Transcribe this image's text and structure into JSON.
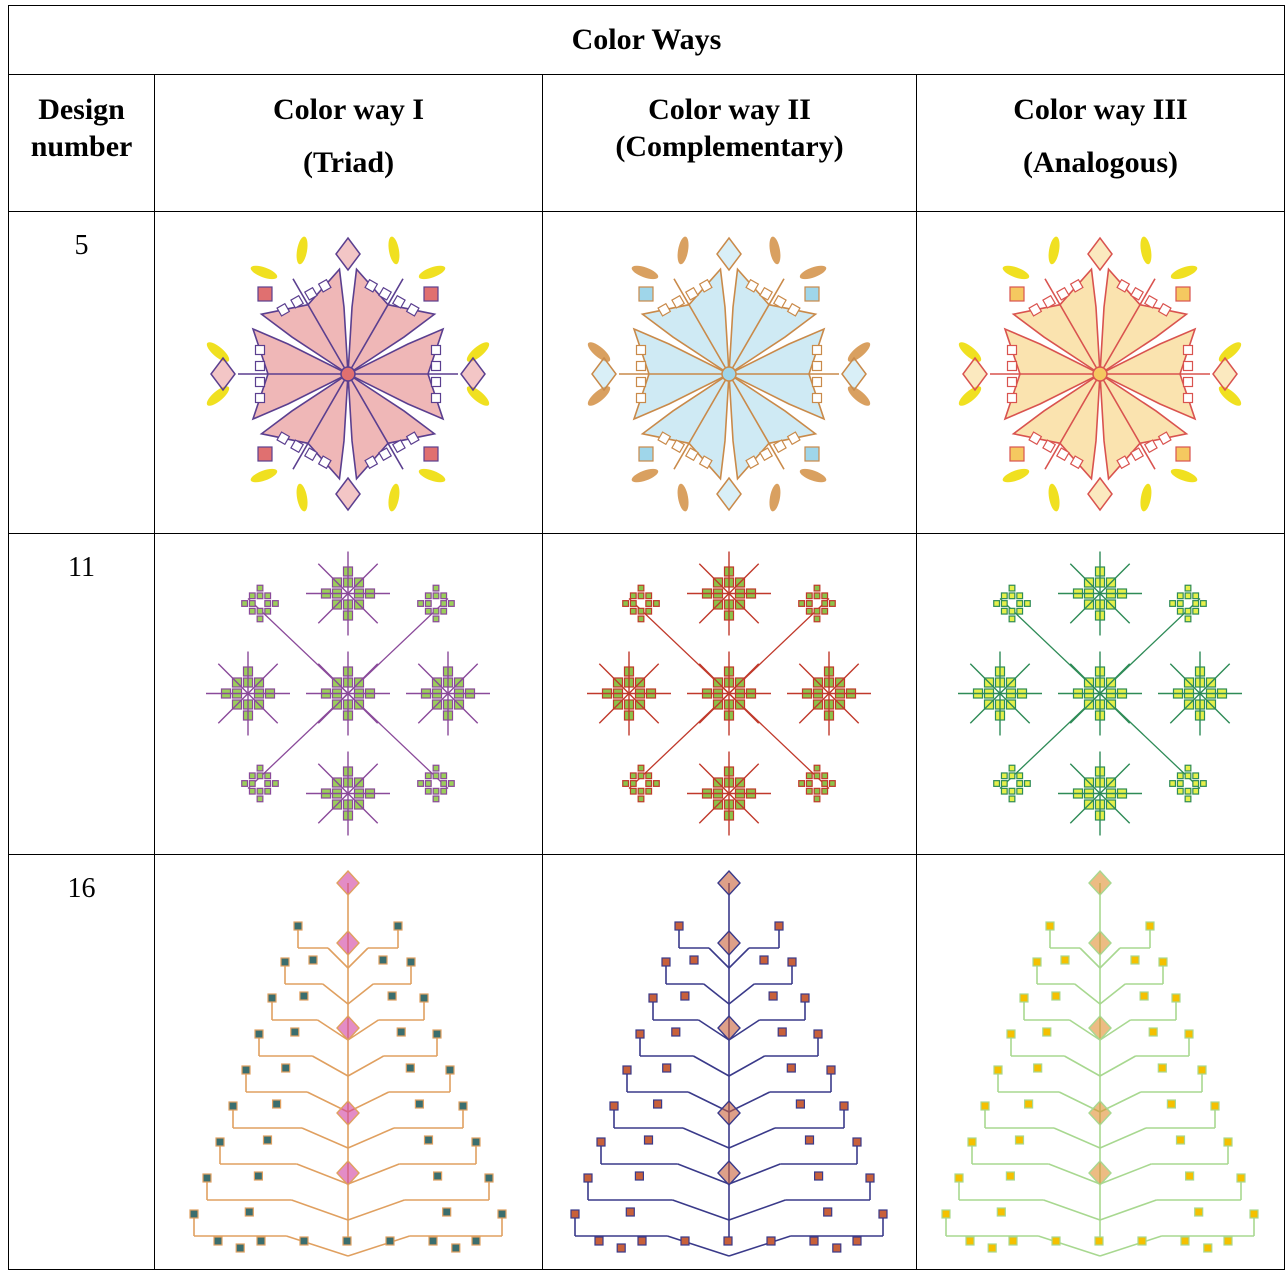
{
  "table": {
    "title": "Color Ways",
    "columns": [
      [
        "Design",
        "number"
      ],
      [
        "Color way I",
        "(Triad)"
      ],
      [
        "Color way II",
        "(Complementary)"
      ],
      [
        "Color way III",
        "(Analogous)"
      ]
    ],
    "rows": [
      "5",
      "11",
      "16"
    ]
  }
}
